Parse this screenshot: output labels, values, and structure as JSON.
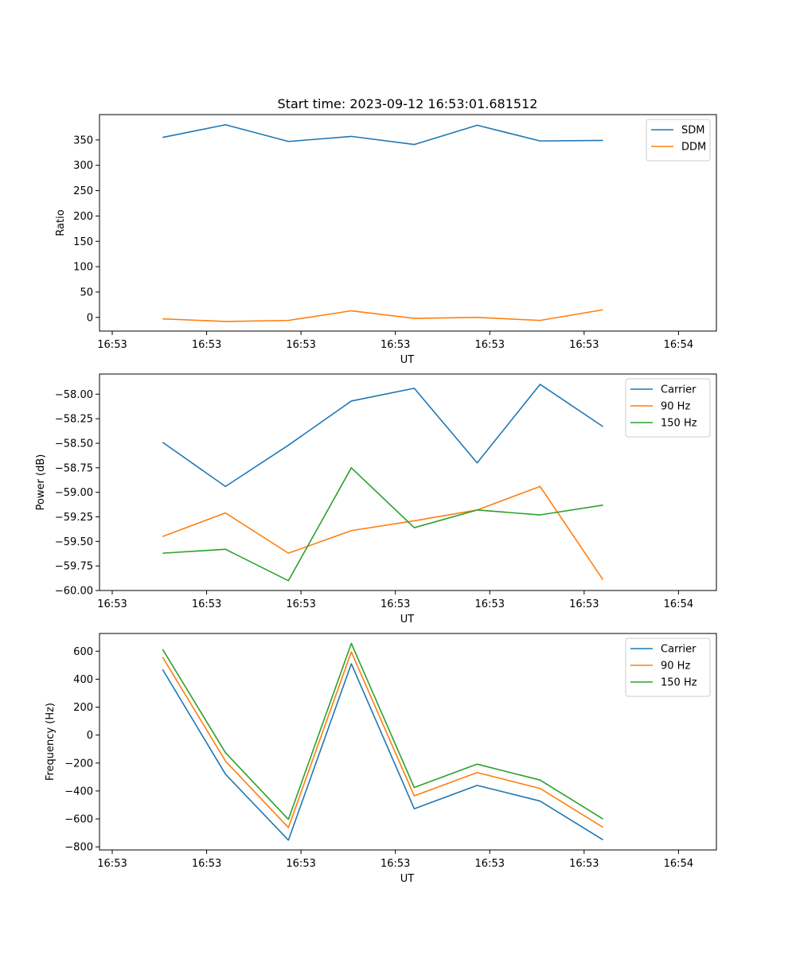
{
  "figure_title": "Start time: 2023-09-12 16:53:01.681512",
  "chart_data": [
    {
      "type": "line",
      "xlabel": "UT",
      "ylabel": "Ratio",
      "x_ticks": [
        "16:53",
        "16:53",
        "16:53",
        "16:53",
        "16:53",
        "16:53",
        "16:54"
      ],
      "y_ticks": [
        0,
        50,
        100,
        150,
        200,
        250,
        300,
        350
      ],
      "ylim": [
        -27,
        400
      ],
      "legend": "top-right",
      "x": [
        1,
        2,
        3,
        4,
        5,
        6,
        7,
        8
      ],
      "series": [
        {
          "name": "SDM",
          "color": "#1f77b4",
          "values": [
            355,
            380,
            347,
            357,
            341,
            379,
            348,
            349
          ]
        },
        {
          "name": "DDM",
          "color": "#ff7f0e",
          "values": [
            -3,
            -8,
            -6,
            13,
            -2,
            0,
            -6,
            15
          ]
        }
      ]
    },
    {
      "type": "line",
      "xlabel": "UT",
      "ylabel": "Power (dB)",
      "x_ticks": [
        "16:53",
        "16:53",
        "16:53",
        "16:53",
        "16:53",
        "16:53",
        "16:54"
      ],
      "y_ticks": [
        "−60.00",
        "−59.75",
        "−59.50",
        "−59.25",
        "−59.00",
        "−58.75",
        "−58.50",
        "−58.25",
        "−58.00"
      ],
      "y_tick_values": [
        -60.0,
        -59.75,
        -59.5,
        -59.25,
        -59.0,
        -58.75,
        -58.5,
        -58.25,
        -58.0
      ],
      "ylim": [
        -60.0,
        -57.795
      ],
      "legend": "top-right",
      "x": [
        1,
        2,
        3,
        4,
        5,
        6,
        7,
        8
      ],
      "series": [
        {
          "name": "Carrier",
          "color": "#1f77b4",
          "values": [
            -58.49,
            -58.94,
            -58.52,
            -58.07,
            -57.94,
            -58.7,
            -57.9,
            -58.33
          ]
        },
        {
          "name": "90 Hz",
          "color": "#ff7f0e",
          "values": [
            -59.45,
            -59.21,
            -59.62,
            -59.39,
            -59.29,
            -59.18,
            -58.94,
            -59.89
          ]
        },
        {
          "name": "150 Hz",
          "color": "#2ca02c",
          "values": [
            -59.62,
            -59.58,
            -59.9,
            -58.75,
            -59.36,
            -59.18,
            -59.23,
            -59.13
          ]
        }
      ]
    },
    {
      "type": "line",
      "xlabel": "UT",
      "ylabel": "Frequency (Hz)",
      "x_ticks": [
        "16:53",
        "16:53",
        "16:53",
        "16:53",
        "16:53",
        "16:53",
        "16:54"
      ],
      "y_ticks": [
        "−800",
        "−600",
        "−400",
        "−200",
        "0",
        "200",
        "400",
        "600"
      ],
      "y_tick_values": [
        -800,
        -600,
        -400,
        -200,
        0,
        200,
        400,
        600
      ],
      "ylim": [
        -822,
        727
      ],
      "legend": "top-right",
      "x": [
        1,
        2,
        3,
        4,
        5,
        6,
        7,
        8
      ],
      "series": [
        {
          "name": "Carrier",
          "color": "#1f77b4",
          "values": [
            470,
            -280,
            -752,
            510,
            -527,
            -360,
            -472,
            -750
          ]
        },
        {
          "name": "90 Hz",
          "color": "#ff7f0e",
          "values": [
            558,
            -186,
            -662,
            595,
            -435,
            -268,
            -382,
            -660
          ]
        },
        {
          "name": "150 Hz",
          "color": "#2ca02c",
          "values": [
            614,
            -126,
            -603,
            656,
            -375,
            -208,
            -322,
            -600
          ]
        }
      ]
    }
  ]
}
